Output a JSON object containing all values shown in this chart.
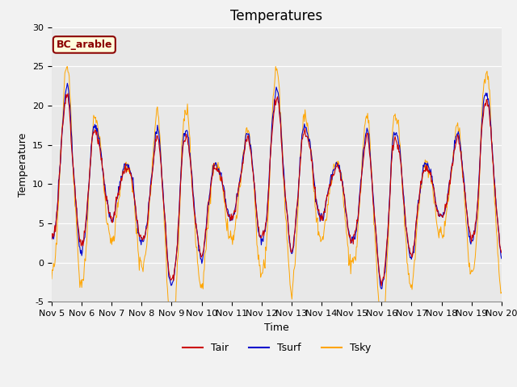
{
  "title": "Temperatures",
  "xlabel": "Time",
  "ylabel": "Temperature",
  "ylim": [
    -5,
    30
  ],
  "annotation_text": "BC_arable",
  "annotation_color": "#8B0000",
  "annotation_bg": "#FFFFDD",
  "tair_color": "#CC0000",
  "tsurf_color": "#0000CC",
  "tsky_color": "#FFA500",
  "legend_labels": [
    "Tair",
    "Tsurf",
    "Tsky"
  ],
  "bg_color": "#E8E8E8",
  "grid_color": "#FFFFFF",
  "n_days": 15,
  "n_per_day": 48,
  "start_day": 5,
  "title_fontsize": 12,
  "label_fontsize": 9,
  "tick_fontsize": 8,
  "yticks": [
    -5,
    0,
    5,
    10,
    15,
    20,
    25,
    30
  ]
}
